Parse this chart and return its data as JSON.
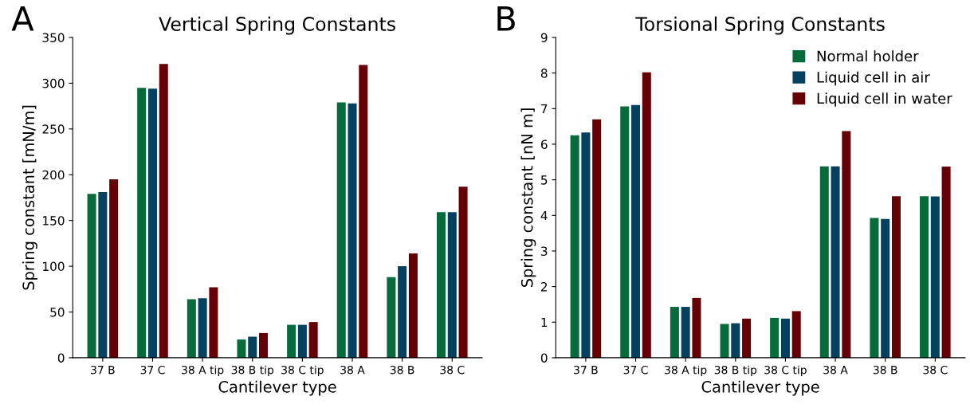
{
  "chart_data": [
    {
      "type": "bar",
      "title": "Vertical Spring Constants",
      "xlabel": "Cantilever type",
      "ylabel": "Spring constant [mN/m]",
      "annotations": [
        "A"
      ],
      "categories": [
        "37 B",
        "37 C",
        "38 A tip",
        "38 B tip",
        "38 C tip",
        "38 A",
        "38 B",
        "38 C"
      ],
      "series": [
        {
          "color": "#066b3a",
          "values": [
            179,
            295,
            64,
            20,
            36,
            279,
            88,
            159
          ]
        },
        {
          "color": "#04405f",
          "values": [
            181,
            294,
            65,
            23,
            36,
            278,
            100,
            159
          ]
        },
        {
          "color": "#650006",
          "values": [
            195,
            321,
            77,
            27,
            39,
            320,
            114,
            187
          ]
        }
      ],
      "ylim": [
        0,
        350
      ],
      "yticks": [
        0,
        50,
        100,
        150,
        200,
        250,
        300,
        350
      ],
      "grid": false,
      "legend": false
    },
    {
      "type": "bar",
      "title": "Torsional Spring Constants",
      "xlabel": "Cantilever type",
      "ylabel": "Spring constant [nN m]",
      "annotations": [
        "B"
      ],
      "categories": [
        "37 B",
        "37 C",
        "38 A tip",
        "38 B tip",
        "38 C tip",
        "38 A",
        "38 B",
        "38 C"
      ],
      "series": [
        {
          "name": "Normal holder",
          "color": "#066b3a",
          "values": [
            6.25,
            7.06,
            1.43,
            0.95,
            1.12,
            5.38,
            3.93,
            4.54
          ]
        },
        {
          "name": "Liquid cell in air",
          "color": "#04405f",
          "values": [
            6.33,
            7.1,
            1.43,
            0.97,
            1.1,
            5.38,
            3.9,
            4.53
          ]
        },
        {
          "name": "Liquid cell in water",
          "color": "#650006",
          "values": [
            6.7,
            8.02,
            1.68,
            1.1,
            1.31,
            6.37,
            4.54,
            5.37
          ]
        }
      ],
      "ylim": [
        0,
        9
      ],
      "yticks": [
        0,
        1,
        2,
        3,
        4,
        5,
        6,
        7,
        8,
        9
      ],
      "grid": false,
      "legend": "top right"
    }
  ]
}
